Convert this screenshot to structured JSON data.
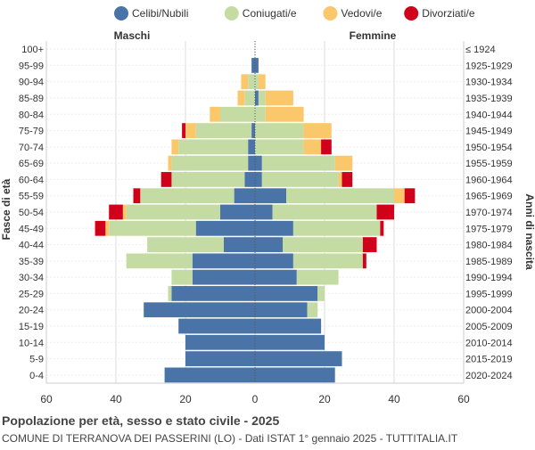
{
  "legend": [
    {
      "label": "Celibi/Nubili",
      "color": "#4a73a8"
    },
    {
      "label": "Coniugati/e",
      "color": "#c5dba4"
    },
    {
      "label": "Vedovi/e",
      "color": "#fbc76b"
    },
    {
      "label": "Divorziati/e",
      "color": "#d0021b"
    }
  ],
  "headers": {
    "left": "Maschi",
    "right": "Femmine"
  },
  "axis": {
    "ylabel_left": "Fasce di età",
    "ylabel_right": "Anni di nascita"
  },
  "footer": {
    "title": "Popolazione per età, sesso e stato civile - 2025",
    "subtitle": "COMUNE DI TERRANOVA DEI PASSERINI (LO) - Dati ISTAT 1° gennaio 2025 - TUTTITALIA.IT"
  },
  "chart_data": {
    "type": "bar",
    "orientation": "horizontal-population-pyramid",
    "xlim": [
      -60,
      60
    ],
    "xticks": [
      -60,
      -40,
      -20,
      0,
      20,
      40,
      60
    ],
    "xtick_labels": [
      "60",
      "40",
      "20",
      "0",
      "20",
      "40",
      "60"
    ],
    "grid": true,
    "legend_position": "top",
    "categories": [
      "100+",
      "95-99",
      "90-94",
      "85-89",
      "80-84",
      "75-79",
      "70-74",
      "65-69",
      "60-64",
      "55-59",
      "50-54",
      "45-49",
      "40-44",
      "35-39",
      "30-34",
      "25-29",
      "20-24",
      "15-19",
      "10-14",
      "5-9",
      "0-4"
    ],
    "birth_years": [
      "≤ 1924",
      "1925-1929",
      "1930-1934",
      "1935-1939",
      "1940-1944",
      "1945-1949",
      "1950-1954",
      "1955-1959",
      "1960-1964",
      "1965-1969",
      "1970-1974",
      "1975-1979",
      "1980-1984",
      "1985-1989",
      "1990-1994",
      "1995-1999",
      "2000-2004",
      "2005-2009",
      "2010-2014",
      "2015-2019",
      "2020-2024"
    ],
    "series_colors": {
      "celibi": "#4a73a8",
      "coniugati": "#c5dba4",
      "vedovi": "#fbc76b",
      "divorziati": "#d0021b"
    },
    "males": {
      "celibi": [
        0,
        1,
        0,
        0,
        0,
        1,
        2,
        2,
        3,
        6,
        10,
        17,
        9,
        18,
        18,
        24,
        32,
        22,
        20,
        20,
        26
      ],
      "coniugati": [
        0,
        0,
        2,
        3,
        10,
        16,
        20,
        22,
        21,
        27,
        27,
        25,
        22,
        19,
        6,
        1,
        0,
        0,
        0,
        0,
        0
      ],
      "vedovi": [
        0,
        0,
        2,
        2,
        3,
        3,
        2,
        1,
        0,
        0,
        1,
        1,
        0,
        0,
        0,
        0,
        0,
        0,
        0,
        0,
        0
      ],
      "divorziati": [
        0,
        0,
        0,
        0,
        0,
        1,
        0,
        0,
        3,
        2,
        4,
        3,
        0,
        0,
        0,
        0,
        0,
        0,
        0,
        0,
        0
      ]
    },
    "females": {
      "nubili": [
        0,
        1,
        0,
        1,
        0,
        0,
        0,
        2,
        2,
        9,
        5,
        11,
        8,
        11,
        12,
        18,
        15,
        19,
        20,
        25,
        23
      ],
      "coniugate": [
        0,
        0,
        1,
        2,
        3,
        14,
        14,
        21,
        22,
        31,
        30,
        25,
        23,
        20,
        12,
        2,
        3,
        0,
        0,
        0,
        0
      ],
      "vedove": [
        0,
        0,
        2,
        8,
        11,
        8,
        5,
        5,
        1,
        3,
        0,
        0,
        0,
        0,
        0,
        0,
        0,
        0,
        0,
        0,
        0
      ],
      "divorziate": [
        0,
        0,
        0,
        0,
        0,
        0,
        3,
        0,
        3,
        3,
        5,
        1,
        4,
        1,
        0,
        0,
        0,
        0,
        0,
        0,
        0
      ]
    }
  }
}
